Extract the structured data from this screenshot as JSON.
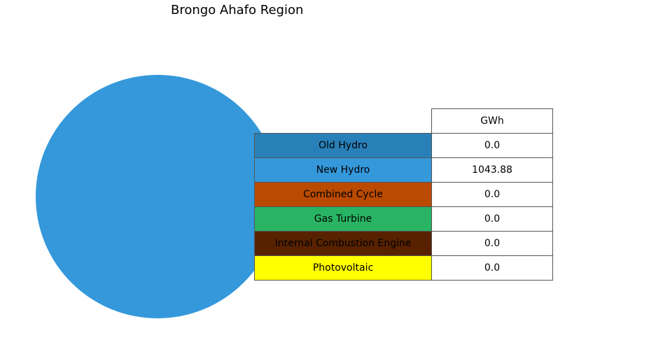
{
  "chart_data": {
    "type": "pie",
    "title": "Brongo Ahafo Region",
    "column_header": "GWh",
    "categories": [
      "Old Hydro",
      "New Hydro",
      "Combined Cycle",
      "Gas Turbine",
      "Internal Combustion Engine",
      "Photovoltaic"
    ],
    "values": [
      0.0,
      1043.88,
      0.0,
      0.0,
      0.0,
      0.0
    ],
    "value_labels": [
      "0.0",
      "1043.88",
      "0.0",
      "0.0",
      "0.0",
      "0.0"
    ],
    "colors": [
      "#2980b9",
      "#3498db",
      "#ba4a00",
      "#28b463",
      "#582200",
      "#ffff00"
    ],
    "legend": "table-right"
  }
}
